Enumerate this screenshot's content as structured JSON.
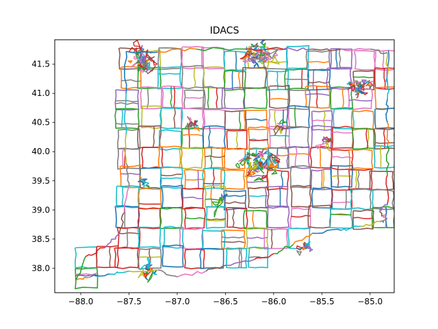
{
  "chart_data": {
    "type": "line",
    "title": "IDACS",
    "xlabel": "",
    "ylabel": "",
    "xlim": [
      -88.27,
      -84.75
    ],
    "ylim": [
      37.58,
      41.92
    ],
    "x_ticks": [
      -88.0,
      -87.5,
      -87.0,
      -86.5,
      -86.0,
      -85.5,
      -85.0
    ],
    "x_tick_labels": [
      "−88.0",
      "−87.5",
      "−87.0",
      "−86.5",
      "−86.0",
      "−85.5",
      "−85.0"
    ],
    "y_ticks": [
      38.0,
      38.5,
      39.0,
      39.5,
      40.0,
      40.5,
      41.0,
      41.5
    ],
    "y_tick_labels": [
      "38.0",
      "38.5",
      "39.0",
      "39.5",
      "40.0",
      "40.5",
      "41.0",
      "41.5"
    ],
    "grid": false,
    "legend": "none",
    "palette": [
      "#1f77b4",
      "#ff7f0e",
      "#2ca02c",
      "#d62728",
      "#9467bd",
      "#8c564b",
      "#e377c2",
      "#7f7f7f",
      "#bcbd22",
      "#17becf"
    ],
    "outline": {
      "lon": [
        -87.53,
        -87.2,
        -86.8,
        -86.3,
        -85.9,
        -85.6,
        -85.3,
        -85.0,
        -84.82,
        -84.82,
        -84.82,
        -84.82,
        -84.82,
        -84.82,
        -84.82,
        -84.9,
        -84.87,
        -84.82,
        -84.9,
        -85.1,
        -85.3,
        -85.6,
        -85.8,
        -86.0,
        -86.2,
        -86.5,
        -86.7,
        -87.0,
        -87.2,
        -87.5,
        -87.7,
        -87.9,
        -88.05,
        -87.95,
        -87.75,
        -87.6,
        -87.55,
        -87.5,
        -87.53,
        -87.53,
        -87.53,
        -87.53
      ],
      "lat": [
        41.72,
        41.71,
        41.76,
        41.76,
        41.76,
        41.76,
        41.76,
        41.76,
        41.7,
        41.3,
        40.9,
        40.5,
        40.1,
        39.6,
        39.1,
        38.98,
        38.9,
        38.85,
        38.8,
        38.72,
        38.65,
        38.6,
        38.4,
        38.25,
        38.15,
        38.05,
        37.95,
        37.85,
        37.97,
        37.95,
        37.9,
        37.85,
        37.8,
        38.2,
        38.35,
        38.6,
        38.95,
        39.4,
        39.8,
        40.3,
        41.0,
        41.72
      ]
    }
  }
}
